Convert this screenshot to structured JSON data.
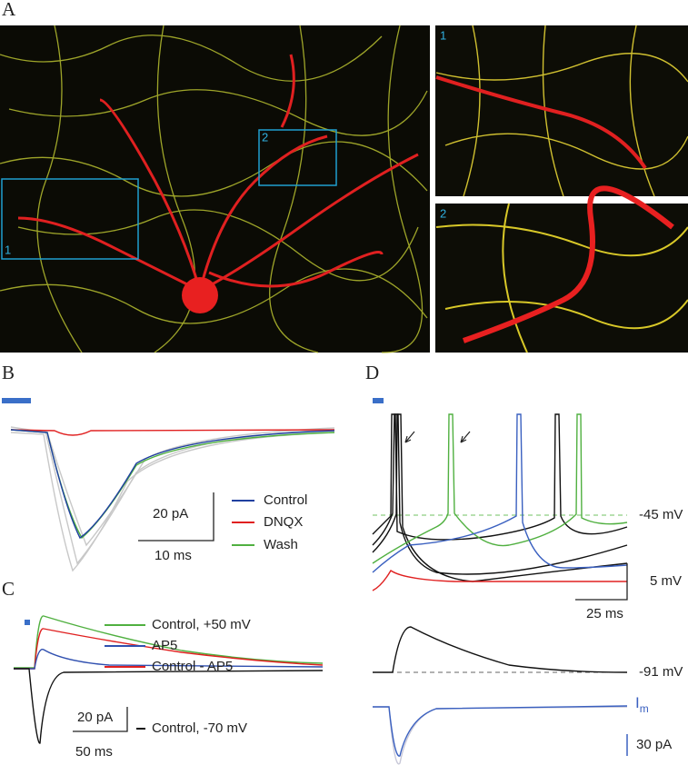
{
  "panel_a": {
    "label": "A",
    "box_labels": [
      "2",
      "1"
    ],
    "inset_labels": [
      "1",
      "2"
    ]
  },
  "panel_b": {
    "label": "B",
    "legend": [
      "Control",
      "DNQX",
      "Wash"
    ],
    "scale_y": "20 pA",
    "scale_x": "10 ms"
  },
  "panel_c": {
    "label": "C",
    "legend": [
      "Control, +50 mV",
      "AP5",
      "Control - AP5",
      "Control, -70 mV"
    ],
    "scale_y": "20 pA",
    "scale_x": "50 ms"
  },
  "panel_d": {
    "label": "D",
    "threshold": "-45 mV",
    "scale_y": "5 mV",
    "scale_x": "25 ms",
    "rest": "-91 mV",
    "current_label": "I",
    "current_sub": "m",
    "current_scale": "30 pA"
  }
}
